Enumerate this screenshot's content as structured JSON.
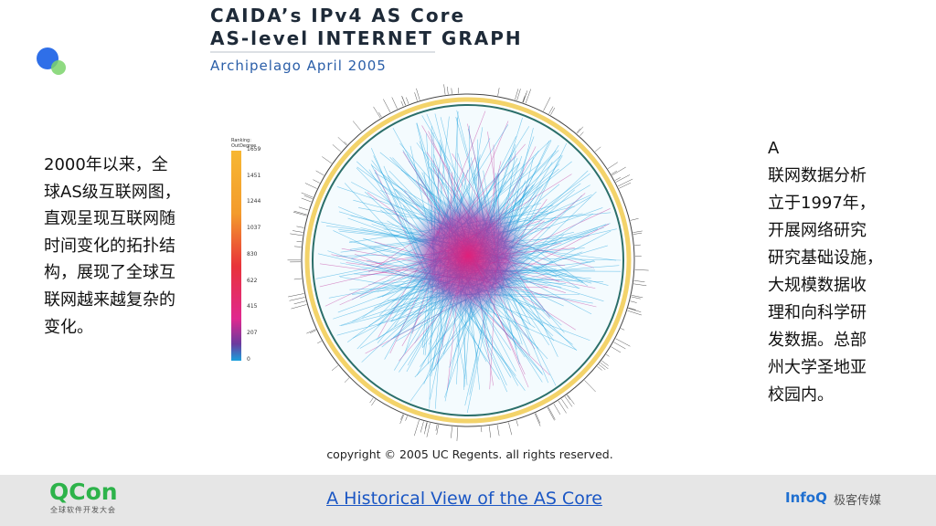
{
  "header": {
    "title_line1": "CAIDA’s IPv4 AS Core",
    "title_line2": "AS-level INTERNET GRAPH",
    "subtitle": "Archipelago April 2005"
  },
  "left_text": [
    "2000年以来，全",
    "球AS级互联网图，",
    "直观呈现互联网随",
    "时间变化的拓扑结",
    "构，展现了全球互",
    "联网越来越复杂的",
    "变化。"
  ],
  "right_text": [
    "A",
    "联网数据分析",
    "立于1997年，",
    "开展网络研究",
    "研究基础设施，",
    "大规模数据收",
    "理和向科学研",
    "发数据。总部",
    "州大学圣地亚",
    "校园内。"
  ],
  "legend": {
    "title_line1": "Ranking:",
    "title_line2": "OutDegree",
    "labels": [
      "1659",
      "1451",
      "1244",
      "1037",
      "830",
      "622",
      "415",
      "207",
      "0"
    ]
  },
  "copyright": "copyright © 2005 UC Regents. all rights reserved.",
  "footer": {
    "logo": "QCon",
    "logo_sub": "全球软件开发大会",
    "link": "A Historical View of the AS Core",
    "brand": "InfoQ",
    "brand_sub": "极客传媒"
  }
}
